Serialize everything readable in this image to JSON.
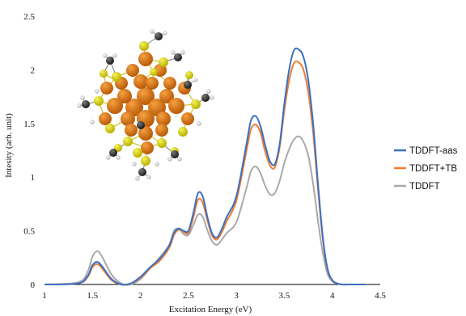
{
  "chart_data": {
    "type": "line",
    "title": "",
    "xlabel": "Excitation Energy (eV)",
    "ylabel": "Intesity (arb. unit)",
    "xlim": [
      1,
      4.5
    ],
    "ylim": [
      0,
      2.5
    ],
    "x_ticks": [
      "1",
      "1.5",
      "2",
      "2.5",
      "3",
      "3.5",
      "4",
      "4.5"
    ],
    "y_ticks": [
      "0",
      "0.5",
      "1",
      "1.5",
      "2",
      "2.5"
    ],
    "grid": false,
    "legend_position": "right",
    "inset_image": "molecular-cluster-structure",
    "x": [
      1.0,
      1.35,
      1.45,
      1.5,
      1.55,
      1.6,
      1.7,
      1.8,
      1.9,
      2.0,
      2.1,
      2.2,
      2.3,
      2.35,
      2.4,
      2.45,
      2.5,
      2.55,
      2.6,
      2.65,
      2.7,
      2.75,
      2.8,
      2.85,
      2.9,
      3.0,
      3.1,
      3.15,
      3.2,
      3.25,
      3.3,
      3.35,
      3.4,
      3.45,
      3.5,
      3.55,
      3.6,
      3.65,
      3.7,
      3.75,
      3.8,
      3.85,
      3.9,
      3.95,
      4.0,
      4.05,
      4.1,
      4.2,
      4.35
    ],
    "series": [
      {
        "name": "TDDFT-aas",
        "color": "#3b6fc4",
        "values": [
          0.0,
          0.01,
          0.08,
          0.18,
          0.21,
          0.17,
          0.05,
          0.0,
          0.01,
          0.07,
          0.16,
          0.24,
          0.36,
          0.48,
          0.52,
          0.5,
          0.5,
          0.66,
          0.85,
          0.82,
          0.62,
          0.47,
          0.44,
          0.52,
          0.63,
          0.82,
          1.28,
          1.52,
          1.57,
          1.48,
          1.3,
          1.15,
          1.12,
          1.3,
          1.68,
          2.0,
          2.18,
          2.19,
          2.12,
          1.9,
          1.5,
          0.95,
          0.45,
          0.15,
          0.04,
          0.01,
          0.0,
          0.0,
          0.0
        ]
      },
      {
        "name": "TDDFT+TB",
        "color": "#ee7d31",
        "values": [
          0.0,
          0.01,
          0.07,
          0.16,
          0.19,
          0.15,
          0.04,
          0.0,
          0.01,
          0.06,
          0.15,
          0.22,
          0.34,
          0.46,
          0.51,
          0.49,
          0.48,
          0.62,
          0.79,
          0.76,
          0.59,
          0.45,
          0.42,
          0.49,
          0.59,
          0.78,
          1.22,
          1.44,
          1.49,
          1.42,
          1.24,
          1.11,
          1.09,
          1.27,
          1.62,
          1.9,
          2.06,
          2.07,
          2.0,
          1.79,
          1.42,
          0.9,
          0.43,
          0.14,
          0.04,
          0.01,
          0.0,
          0.0,
          0.0
        ]
      },
      {
        "name": "TDDFT",
        "color": "#a9a9a9",
        "values": [
          0.0,
          0.02,
          0.12,
          0.26,
          0.31,
          0.26,
          0.09,
          0.01,
          0.0,
          0.05,
          0.15,
          0.25,
          0.37,
          0.5,
          0.52,
          0.47,
          0.46,
          0.55,
          0.65,
          0.63,
          0.5,
          0.4,
          0.37,
          0.42,
          0.48,
          0.58,
          0.88,
          1.05,
          1.1,
          1.04,
          0.92,
          0.84,
          0.85,
          0.96,
          1.13,
          1.26,
          1.35,
          1.38,
          1.33,
          1.2,
          0.94,
          0.6,
          0.3,
          0.1,
          0.03,
          0.01,
          0.0,
          0.0,
          0.0
        ]
      }
    ]
  }
}
